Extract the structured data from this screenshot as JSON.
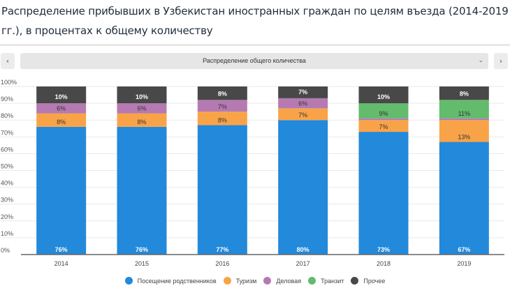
{
  "title": "Распределение прибывших в Узбекистан иностранных граждан по целям въезда (2014-2019 гг.), в процентах к общему количеству",
  "controls": {
    "prev_icon": "‹",
    "next_icon": "›",
    "select_value": "Распределение общего количества",
    "chevron_icon": "⌄"
  },
  "chart_data": {
    "type": "bar",
    "stacked": true,
    "title": "Распределение прибывших в Узбекистан иностранных граждан по целям въезда (2014-2019 гг.), в процентах к общему количеству",
    "xlabel": "",
    "ylabel": "",
    "ylim": [
      0,
      100
    ],
    "y_ticks": [
      "0%",
      "10%",
      "20%",
      "30%",
      "40%",
      "50%",
      "60%",
      "70%",
      "80%",
      "90%",
      "100%"
    ],
    "grid": true,
    "legend_position": "bottom",
    "categories": [
      "2014",
      "2015",
      "2016",
      "2017",
      "2018",
      "2019"
    ],
    "series": [
      {
        "name": "Посещение родственников",
        "color": "#2389da",
        "label_color": "#ffffff",
        "values": [
          76,
          76,
          77,
          80,
          73,
          67
        ]
      },
      {
        "name": "Туризм",
        "color": "#f9a348",
        "label_color": "#333333",
        "values": [
          8,
          8,
          8,
          7,
          7,
          13
        ]
      },
      {
        "name": "Деловая",
        "color": "#b57ab2",
        "label_color": "#333333",
        "values": [
          6,
          6,
          7,
          6,
          1,
          1
        ]
      },
      {
        "name": "Транзит",
        "color": "#63bb6c",
        "label_color": "#333333",
        "values": [
          0,
          0,
          0,
          0,
          9,
          11
        ]
      },
      {
        "name": "Прочее",
        "color": "#484848",
        "label_color": "#ffffff",
        "values": [
          10,
          10,
          8,
          7,
          10,
          8
        ]
      }
    ]
  }
}
